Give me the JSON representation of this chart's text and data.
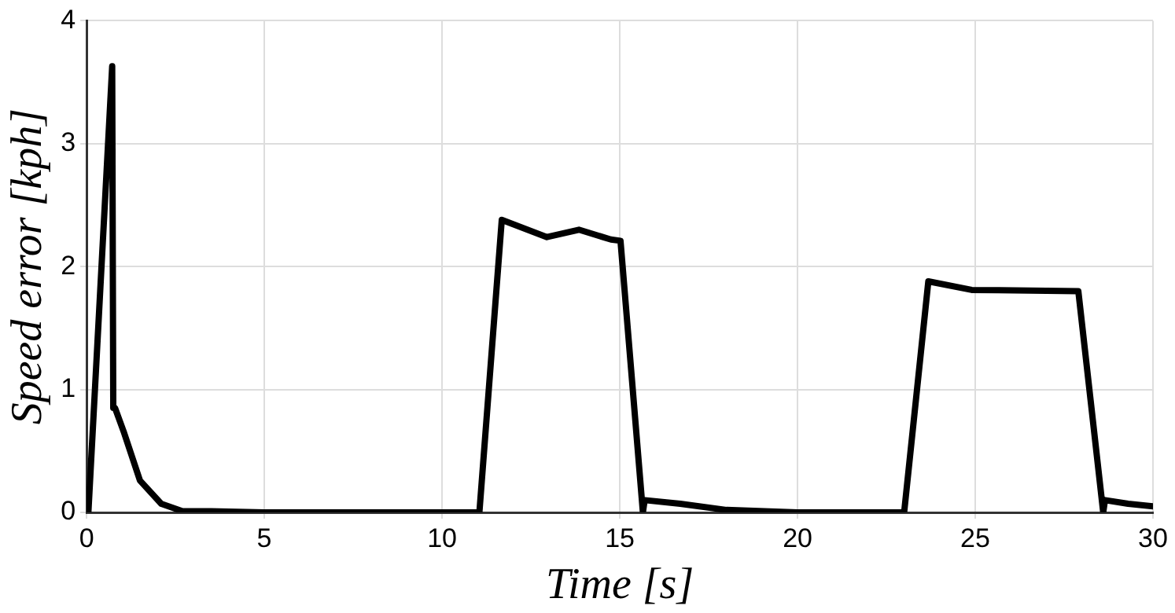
{
  "chart_data": {
    "type": "line",
    "xlabel": "Time [s]",
    "ylabel": "Speed error [kph]",
    "xlim": [
      0,
      30
    ],
    "xticks": [
      0,
      5,
      10,
      15,
      20,
      25,
      30
    ],
    "ylim": [
      0,
      4
    ],
    "yticks": [
      0,
      1,
      2,
      3,
      4
    ],
    "grid": true,
    "marker": "none",
    "line_style": "solid",
    "series": [
      {
        "color": "#000000",
        "x": [
          0,
          0.05,
          0.72,
          0.75,
          0.8,
          1.04,
          1.5,
          2.1,
          2.7,
          3.5,
          5,
          8,
          11.05,
          11.68,
          12.95,
          13.85,
          14.75,
          15.02,
          15.65,
          15.7,
          16.7,
          18,
          20,
          23.0,
          23.68,
          24.9,
          27.9,
          28.6,
          28.65,
          29.3,
          30
        ],
        "values": [
          0,
          0,
          3.63,
          0.85,
          0.85,
          0.66,
          0.26,
          0.07,
          0.01,
          0.01,
          0,
          0,
          0,
          2.38,
          2.24,
          2.3,
          2.22,
          2.21,
          0,
          0.1,
          0.07,
          0.02,
          0,
          0,
          1.88,
          1.81,
          1.8,
          0,
          0.1,
          0.07,
          0.05
        ]
      }
    ]
  }
}
